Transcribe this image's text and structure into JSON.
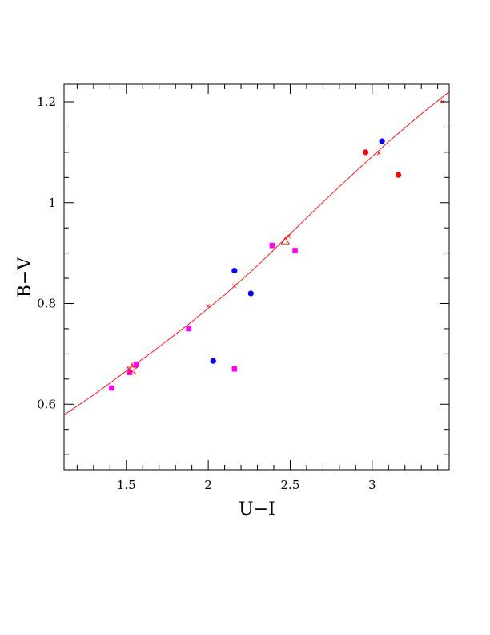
{
  "chart_data": {
    "type": "scatter",
    "xlabel": "U−I",
    "ylabel": "B−V",
    "xlim": [
      1.12,
      3.47
    ],
    "ylim": [
      0.47,
      1.235
    ],
    "x_ticks": [
      {
        "value": 1.5,
        "label": "1.5"
      },
      {
        "value": 2,
        "label": "2"
      },
      {
        "value": 2.5,
        "label": "2.5"
      },
      {
        "value": 3,
        "label": "3"
      }
    ],
    "y_ticks": [
      {
        "value": 0.6,
        "label": "0.6"
      },
      {
        "value": 0.8,
        "label": "0.8"
      },
      {
        "value": 1,
        "label": "1"
      },
      {
        "value": 1.2,
        "label": "1.2"
      }
    ],
    "x_minor_step": 0.1,
    "y_minor_step": 0.05,
    "grid": false,
    "colors": {
      "blue": "#0000ff",
      "magenta": "#ff00ff",
      "red": "#ff0000",
      "fit": "#ff0000"
    },
    "fit_curve": {
      "color": "#ff0000",
      "x": [
        1.12,
        1.3,
        1.5,
        1.7,
        1.9,
        2.1,
        2.3,
        2.5,
        2.7,
        2.9,
        3.1,
        3.3,
        3.47
      ],
      "y": [
        0.579,
        0.618,
        0.666,
        0.714,
        0.764,
        0.817,
        0.875,
        0.938,
        1.001,
        1.062,
        1.121,
        1.176,
        1.22
      ]
    },
    "fit_markers": {
      "color": "#ff0000",
      "x": [
        2.0,
        2.16,
        2.49,
        3.04,
        3.43
      ],
      "y": [
        0.795,
        0.835,
        0.933,
        1.098,
        1.2
      ]
    },
    "series": [
      {
        "marker": "circle",
        "color": "#0000ff",
        "x": [
          2.03,
          2.16,
          2.26,
          3.06
        ],
        "y": [
          0.686,
          0.865,
          0.82,
          1.122
        ]
      },
      {
        "marker": "square",
        "color": "#ff00ff",
        "x": [
          1.41,
          1.52,
          1.56,
          1.88,
          2.16,
          2.39,
          2.53
        ],
        "y": [
          0.632,
          0.663,
          0.679,
          0.75,
          0.67,
          0.915,
          0.905
        ]
      },
      {
        "marker": "circle",
        "color": "#ff0000",
        "x": [
          2.96,
          3.16
        ],
        "y": [
          1.1,
          1.055
        ]
      },
      {
        "marker": "open-star",
        "color": "#ff0000",
        "x": [
          1.535
        ],
        "y": [
          0.67
        ]
      },
      {
        "marker": "open-triangle",
        "color": "#ff0000",
        "x": [
          2.47
        ],
        "y": [
          0.923
        ]
      }
    ]
  }
}
